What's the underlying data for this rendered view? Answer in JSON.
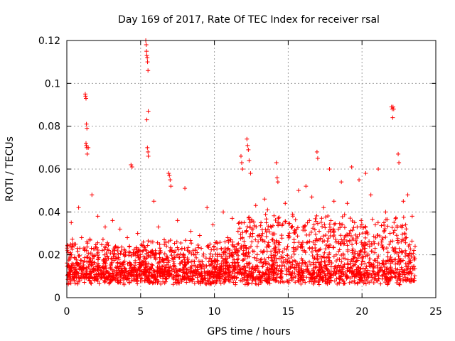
{
  "chart_data": {
    "type": "scatter",
    "title": "Day 169 of 2017, Rate Of TEC Index for receiver rsal",
    "xlabel": "GPS time / hours",
    "ylabel": "ROTI / TECUs",
    "xlim": [
      0,
      25
    ],
    "ylim": [
      0,
      0.12
    ],
    "x_ticks": [
      0,
      5,
      10,
      15,
      20,
      25
    ],
    "x_tick_labels": [
      "0",
      "5",
      "10",
      "15",
      "20",
      "25"
    ],
    "y_ticks": [
      0,
      0.02,
      0.04,
      0.06,
      0.08,
      0.1,
      0.12
    ],
    "y_tick_labels": [
      "0",
      "0.02",
      "0.04",
      "0.06",
      "0.08",
      "0.1",
      "0.12"
    ],
    "grid": true,
    "marker": "+",
    "color": "#ff0000",
    "series": [
      {
        "name": "rsal",
        "x": [
          1.25,
          1.27,
          1.3,
          1.33,
          1.36,
          1.3,
          1.32,
          1.35,
          1.38,
          1.45,
          5.35,
          5.38,
          5.4,
          5.42,
          5.45,
          5.47,
          5.5,
          5.52,
          5.42,
          5.46,
          5.5,
          5.52,
          22.0,
          22.05,
          22.1,
          22.15,
          4.35,
          4.42,
          22.08,
          12.2,
          12.25,
          12.3,
          11.8,
          11.85,
          11.9,
          12.35,
          12.45,
          16.95,
          17.0,
          14.2,
          14.25,
          14.3,
          6.9,
          6.95,
          7.0,
          7.05,
          19.3,
          17.8,
          20.25,
          21.1,
          22.45,
          22.5,
          19.8,
          23.1,
          18.6,
          15.7,
          16.2,
          1.7,
          3.1,
          5.9,
          8.0,
          9.5,
          10.6,
          13.4,
          0.3,
          0.8,
          2.1,
          2.6,
          3.6,
          4.1,
          4.8,
          6.2,
          7.5,
          8.4,
          9.0,
          9.9,
          11.2,
          12.8,
          13.6,
          14.8,
          15.3,
          16.6,
          17.4,
          18.1,
          19.0,
          20.6,
          21.6,
          22.8,
          23.4,
          0.5,
          1.0,
          2.4,
          3.3,
          4.5,
          5.7,
          6.6,
          7.8,
          8.7,
          9.7,
          10.9,
          11.6,
          12.6,
          13.9,
          15.0,
          16.0,
          17.1,
          18.4,
          19.5,
          20.9,
          21.9,
          23.0,
          23.6
        ],
        "y": [
          0.095,
          0.094,
          0.093,
          0.081,
          0.079,
          0.072,
          0.071,
          0.07,
          0.067,
          0.07,
          0.12,
          0.118,
          0.115,
          0.113,
          0.112,
          0.11,
          0.106,
          0.087,
          0.083,
          0.07,
          0.068,
          0.066,
          0.089,
          0.088,
          0.089,
          0.088,
          0.062,
          0.061,
          0.084,
          0.074,
          0.071,
          0.069,
          0.066,
          0.063,
          0.06,
          0.064,
          0.058,
          0.068,
          0.065,
          0.063,
          0.056,
          0.054,
          0.058,
          0.057,
          0.055,
          0.052,
          0.061,
          0.06,
          0.058,
          0.06,
          0.067,
          0.063,
          0.055,
          0.048,
          0.054,
          0.05,
          0.052,
          0.048,
          0.036,
          0.045,
          0.051,
          0.042,
          0.04,
          0.046,
          0.035,
          0.042,
          0.038,
          0.033,
          0.032,
          0.028,
          0.03,
          0.033,
          0.036,
          0.031,
          0.029,
          0.034,
          0.037,
          0.043,
          0.041,
          0.044,
          0.039,
          0.047,
          0.042,
          0.045,
          0.044,
          0.048,
          0.04,
          0.045,
          0.038,
          0.025,
          0.028,
          0.022,
          0.024,
          0.021,
          0.026,
          0.027,
          0.023,
          0.022,
          0.025,
          0.028,
          0.031,
          0.03,
          0.027,
          0.029,
          0.033,
          0.031,
          0.032,
          0.035,
          0.034,
          0.03,
          0.028,
          0.024
        ]
      }
    ]
  }
}
